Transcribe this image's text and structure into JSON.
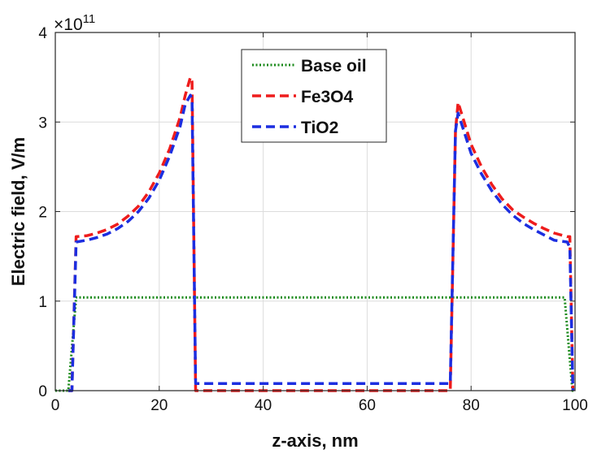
{
  "chart_data": {
    "type": "line",
    "title": "",
    "xlabel": "z-axis, nm",
    "ylabel": "Electric field, V/m",
    "y_multiplier": "×10",
    "y_exponent": "11",
    "xlim": [
      0,
      100
    ],
    "ylim": [
      0,
      4
    ],
    "x_ticks": [
      "0",
      "20",
      "40",
      "60",
      "80",
      "100"
    ],
    "y_ticks": [
      "0",
      "1",
      "2",
      "3",
      "4"
    ],
    "grid": true,
    "legend_position": "top-center",
    "series": [
      {
        "name": "Base oil",
        "color": "#1a8a1a",
        "style": "dotted",
        "x": [
          0,
          2.5,
          4,
          98,
          99.5,
          100
        ],
        "y": [
          0,
          0,
          1.04,
          1.04,
          0,
          0
        ]
      },
      {
        "name": "Fe3O4",
        "color": "#ee1c1c",
        "style": "dashed",
        "x": [
          2.5,
          3.2,
          4,
          6,
          8,
          10,
          12,
          14,
          16,
          18,
          20,
          22,
          24,
          25,
          26,
          26.3,
          27,
          30,
          50,
          70,
          76,
          77,
          77.5,
          80,
          82,
          84,
          86,
          88,
          90,
          92,
          94,
          96,
          98.5,
          99,
          99.6
        ],
        "y": [
          0,
          0,
          1.72,
          1.73,
          1.76,
          1.8,
          1.86,
          1.95,
          2.06,
          2.22,
          2.43,
          2.7,
          3.05,
          3.3,
          3.5,
          3.45,
          0,
          0,
          0,
          0,
          0,
          2.9,
          3.22,
          2.75,
          2.5,
          2.3,
          2.14,
          2.02,
          1.94,
          1.87,
          1.81,
          1.76,
          1.72,
          1.72,
          0
        ]
      },
      {
        "name": "TiO2",
        "color": "#1c2ee0",
        "style": "dashed",
        "x": [
          2.5,
          3.2,
          4,
          6,
          8,
          10,
          12,
          14,
          16,
          18,
          20,
          22,
          24,
          25,
          26,
          26.3,
          27,
          30,
          50,
          70,
          76,
          77,
          77.5,
          80,
          82,
          84,
          86,
          88,
          90,
          92,
          94,
          96,
          98.5,
          99,
          99.6
        ],
        "y": [
          0,
          0,
          1.66,
          1.68,
          1.71,
          1.75,
          1.81,
          1.89,
          2.0,
          2.15,
          2.35,
          2.62,
          2.95,
          3.2,
          3.3,
          3.25,
          0.08,
          0.08,
          0.08,
          0.08,
          0.08,
          2.9,
          3.1,
          2.65,
          2.42,
          2.23,
          2.08,
          1.96,
          1.87,
          1.8,
          1.74,
          1.68,
          1.66,
          1.6,
          0
        ]
      }
    ]
  }
}
